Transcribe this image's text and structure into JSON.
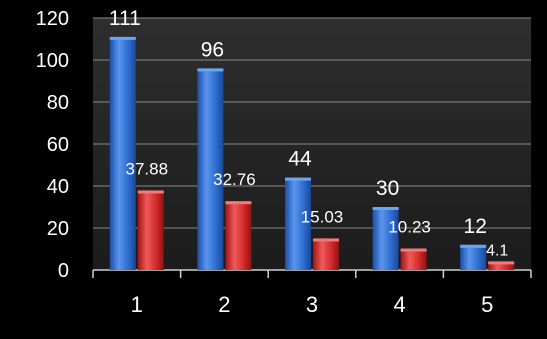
{
  "chart_data": {
    "type": "bar",
    "categories": [
      "1",
      "2",
      "3",
      "4",
      "5"
    ],
    "series": [
      {
        "values": [
          111,
          96,
          44,
          30,
          12
        ],
        "labels": [
          "111",
          "96",
          "44",
          "30",
          "12"
        ],
        "color": "#2f6fd0"
      },
      {
        "values": [
          37.88,
          32.76,
          15.03,
          10.23,
          4.1
        ],
        "labels": [
          "37.88",
          "32.76",
          "15.03",
          "10.23",
          "4.1"
        ],
        "color": "#d42b2b"
      }
    ],
    "y_ticks": [
      "0",
      "20",
      "40",
      "60",
      "80",
      "100",
      "120"
    ],
    "ylim": [
      0,
      120
    ],
    "grid": true,
    "background": "#000000",
    "plot_background": "#262626",
    "text_color": "#ffffff"
  }
}
